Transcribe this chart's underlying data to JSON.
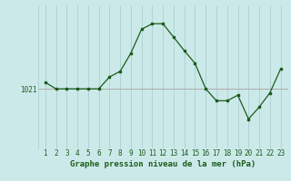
{
  "x": [
    1,
    2,
    3,
    4,
    5,
    6,
    7,
    8,
    9,
    10,
    11,
    12,
    13,
    14,
    15,
    16,
    17,
    18,
    19,
    20,
    21,
    22,
    23
  ],
  "y": [
    1021.8,
    1021.0,
    1021.0,
    1021.0,
    1021.0,
    1021.0,
    1022.5,
    1023.2,
    1025.5,
    1028.5,
    1029.2,
    1029.2,
    1027.5,
    1025.8,
    1024.2,
    1021.0,
    1019.5,
    1019.5,
    1020.2,
    1017.2,
    1018.7,
    1020.5,
    1023.5
  ],
  "hline_y": 1021.0,
  "hline_label": "1021",
  "xlabel": "Graphe pression niveau de la mer (hPa)",
  "bg_color": "#cce9e9",
  "line_color": "#1a5c1a",
  "grid_color": "#aacfcf",
  "hline_color": "#aaaaaa",
  "text_color": "#1a5c1a",
  "ylim_min": 1013.5,
  "ylim_max": 1031.5,
  "xlabel_fontsize": 6.5,
  "tick_fontsize": 5.5,
  "ylabel_fontsize": 5.5
}
